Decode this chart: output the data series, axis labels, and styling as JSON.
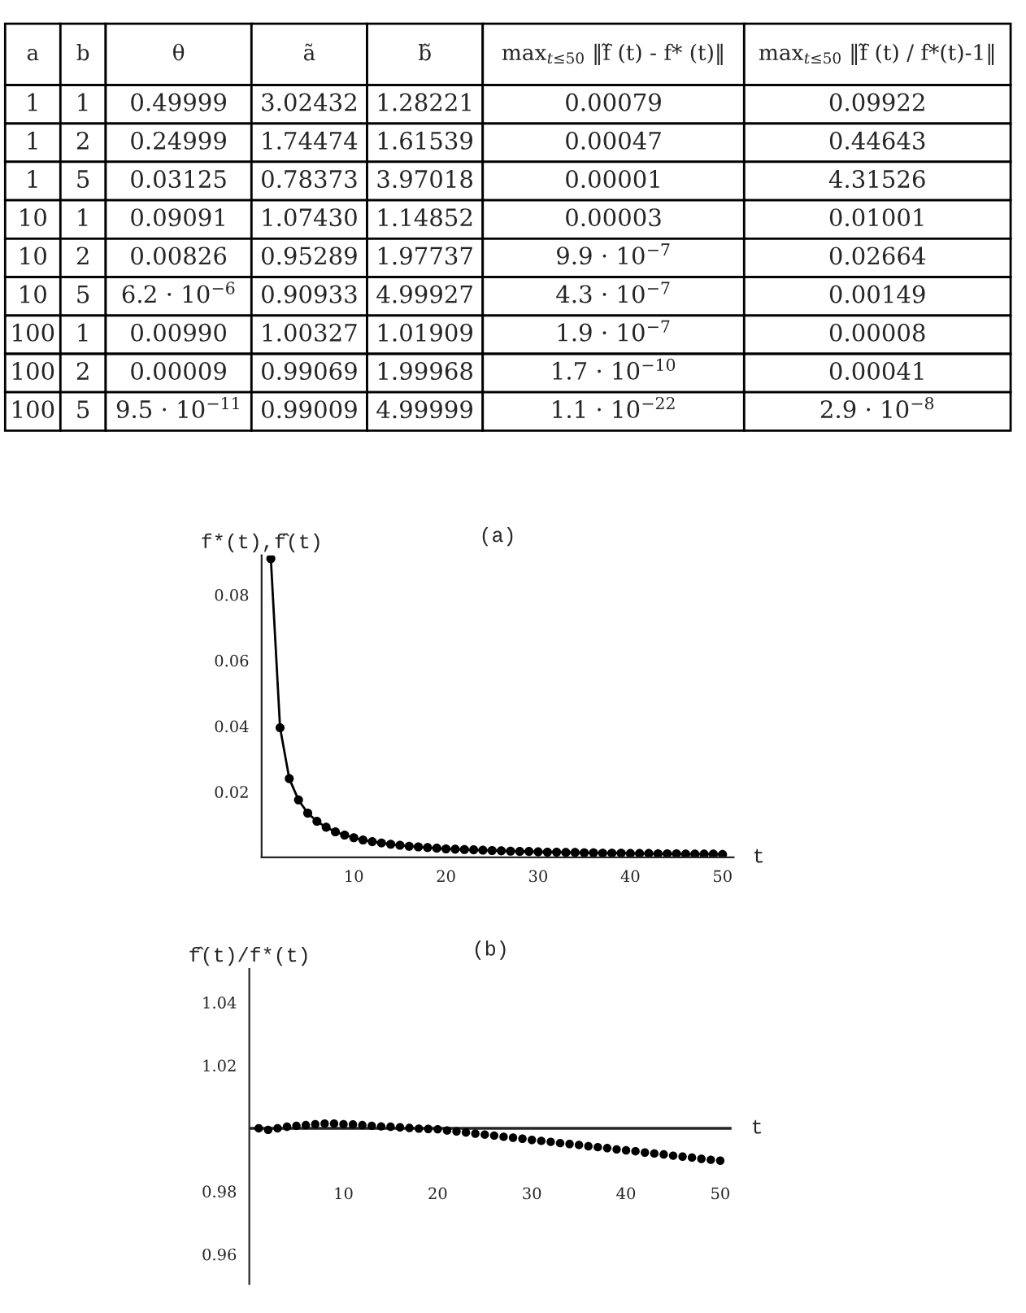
{
  "chart_data": [
    {
      "type": "other",
      "categories": [
        "a",
        "b",
        "θ",
        "ã",
        "b̃",
        "max$_{t≤50}$ ‖f̃ (t) - f* (t)‖",
        "max$_{t≤50}$ ‖f̃ (t) / f*(t)-1‖"
      ],
      "cell_labels": [
        [
          "1",
          "1",
          "0.49999",
          "3.02432",
          "1.28221",
          "0.00079",
          "0.09922"
        ],
        [
          "1",
          "2",
          "0.24999",
          "1.74474",
          "1.61539",
          "0.00047",
          "0.44643"
        ],
        [
          "1",
          "5",
          "0.03125",
          "0.78373",
          "3.97018",
          "0.00001",
          "4.31526"
        ],
        [
          "10",
          "1",
          "0.09091",
          "1.07430",
          "1.14852",
          "0.00003",
          "0.01001"
        ],
        [
          "10",
          "2",
          "0.00826",
          "0.95289",
          "1.97737",
          "9.9 · 10$^{−7}$",
          "0.02664"
        ],
        [
          "10",
          "5",
          "6.2 · 10$^{−6}$",
          "0.90933",
          "4.99927",
          "4.3 · 10$^{−7}$",
          "0.00149"
        ],
        [
          "100",
          "1",
          "0.00990",
          "1.00327",
          "1.01909",
          "1.9 · 10$^{−7}$",
          "0.00008"
        ],
        [
          "100",
          "2",
          "0.00009",
          "0.99069",
          "1.99968",
          "1.7 · 10$^{−10}$",
          "0.00041"
        ],
        [
          "100",
          "5",
          "9.5 · 10$^{−11}$",
          "0.99009",
          "4.99999",
          "1.1 · 10$^{−22}$",
          "2.9 · 10$^{−8}$"
        ]
      ]
    },
    {
      "type": "line",
      "title": "(a)",
      "xlabel": "t",
      "ylabel": "f*(t),f̂(t)",
      "x": [
        1,
        2,
        3,
        4,
        5,
        6,
        7,
        8,
        9,
        10,
        11,
        12,
        13,
        14,
        15,
        16,
        17,
        18,
        19,
        20,
        21,
        22,
        23,
        24,
        25,
        26,
        27,
        28,
        29,
        30,
        31,
        32,
        33,
        34,
        35,
        36,
        37,
        38,
        39,
        40,
        41,
        42,
        43,
        44,
        45,
        46,
        47,
        48,
        49,
        50
      ],
      "series": [
        {
          "color": "#000000",
          "values": [
            0.091,
            0.0395,
            0.024,
            0.0175,
            0.0135,
            0.011,
            0.0092,
            0.0078,
            0.0068,
            0.006,
            0.0053,
            0.0048,
            0.0044,
            0.004,
            0.0037,
            0.0034,
            0.0032,
            0.003,
            0.0028,
            0.0026,
            0.0025,
            0.0024,
            0.0023,
            0.0022,
            0.0021,
            0.002,
            0.0019,
            0.0018,
            0.0018,
            0.0017,
            0.0016,
            0.0016,
            0.0015,
            0.0015,
            0.0014,
            0.0014,
            0.0013,
            0.0013,
            0.0013,
            0.0012,
            0.0012,
            0.0012,
            0.0011,
            0.0011,
            0.0011,
            0.001,
            0.001,
            0.001,
            0.001,
            0.0009
          ]
        }
      ],
      "marker": "circle",
      "line_style": "solid",
      "grid": false,
      "xlim": [
        0,
        51.2
      ],
      "ylim": [
        0,
        0.092
      ],
      "xticks": [
        10,
        20,
        30,
        40,
        50
      ],
      "yticks": [
        0.02,
        0.04,
        0.06,
        0.08
      ]
    },
    {
      "type": "scatter",
      "title": "(b)",
      "xlabel": "t",
      "ylabel": "f̂(t)/f*(t)",
      "x": [
        1,
        2,
        3,
        4,
        5,
        6,
        7,
        8,
        9,
        10,
        11,
        12,
        13,
        14,
        15,
        16,
        17,
        18,
        19,
        20,
        21,
        22,
        23,
        24,
        25,
        26,
        27,
        28,
        29,
        30,
        31,
        32,
        33,
        34,
        35,
        36,
        37,
        38,
        39,
        40,
        41,
        42,
        43,
        44,
        45,
        46,
        47,
        48,
        49,
        50
      ],
      "series": [
        {
          "color": "#000000",
          "values": [
            1.0,
            0.9995,
            1.0,
            1.0005,
            1.0008,
            1.001,
            1.0013,
            1.0015,
            1.0015,
            1.0013,
            1.0012,
            1.001,
            1.0008,
            1.0006,
            1.0005,
            1.0003,
            1.0001,
            0.9999,
            0.9998,
            0.9997,
            0.9993,
            0.999,
            0.9987,
            0.9983,
            0.998,
            0.9977,
            0.9973,
            0.997,
            0.9967,
            0.9963,
            0.996,
            0.9957,
            0.9953,
            0.995,
            0.9947,
            0.9943,
            0.994,
            0.9937,
            0.9933,
            0.993,
            0.9927,
            0.9923,
            0.992,
            0.9917,
            0.9913,
            0.991,
            0.9907,
            0.9903,
            0.99,
            0.9897
          ]
        }
      ],
      "marker": "circle",
      "grid": false,
      "xlim": [
        0,
        51.2
      ],
      "ylim": [
        0.9505,
        1.0506
      ],
      "xticks": [
        10,
        20,
        30,
        40,
        50
      ],
      "yticks": [
        0.96,
        0.98,
        {
          "value": 1.0,
          "label": null
        },
        1.02,
        1.04
      ],
      "ref_lines": [
        {
          "axis": "y",
          "value": 1.0,
          "color": "#262626"
        }
      ]
    }
  ]
}
